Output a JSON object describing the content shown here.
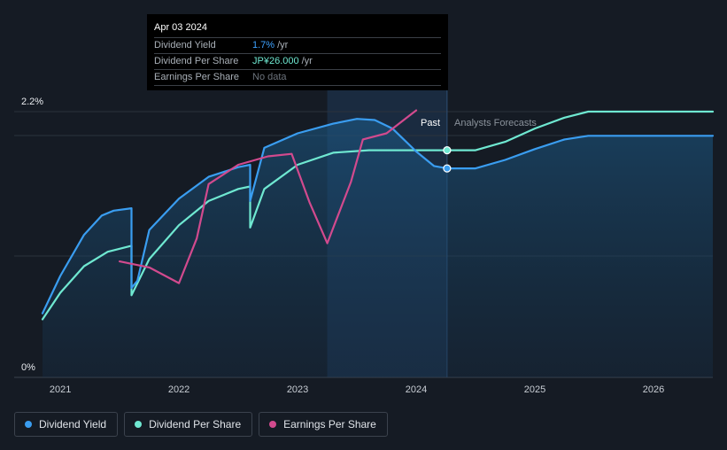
{
  "tooltip": {
    "date": "Apr 03 2024",
    "rows": [
      {
        "label": "Dividend Yield",
        "value": "1.7%",
        "unit": "/yr"
      },
      {
        "label": "Dividend Per Share",
        "value": "JP¥26.000",
        "unit": "/yr"
      },
      {
        "label": "Earnings Per Share",
        "value": "No data"
      }
    ]
  },
  "chart_data": {
    "type": "line",
    "x_ticks": [
      "2021",
      "2022",
      "2023",
      "2024",
      "2025",
      "2026"
    ],
    "y_labels": {
      "top": "2.2%",
      "bottom": "0%"
    },
    "ylim": [
      0,
      2.2
    ],
    "xlim": [
      2020.85,
      2026.5
    ],
    "past_label": "Past",
    "forecast_label": "Analysts Forecasts",
    "divider_x": 2024.26,
    "highlight_start": 2023.25,
    "series": [
      {
        "name": "Dividend Yield",
        "color": "#3a9df0",
        "points": [
          [
            2020.85,
            0.53
          ],
          [
            2021.0,
            0.84
          ],
          [
            2021.2,
            1.18
          ],
          [
            2021.35,
            1.34
          ],
          [
            2021.45,
            1.38
          ],
          [
            2021.6,
            1.4
          ],
          [
            2021.6,
            0.74
          ],
          [
            2021.65,
            0.8
          ],
          [
            2021.75,
            1.22
          ],
          [
            2022.0,
            1.48
          ],
          [
            2022.25,
            1.66
          ],
          [
            2022.5,
            1.74
          ],
          [
            2022.6,
            1.76
          ],
          [
            2022.6,
            1.46
          ],
          [
            2022.72,
            1.9
          ],
          [
            2023.0,
            2.02
          ],
          [
            2023.3,
            2.1
          ],
          [
            2023.5,
            2.14
          ],
          [
            2023.65,
            2.13
          ],
          [
            2023.8,
            2.06
          ],
          [
            2024.0,
            1.87
          ],
          [
            2024.15,
            1.75
          ],
          [
            2024.26,
            1.73
          ],
          [
            2024.5,
            1.73
          ],
          [
            2024.75,
            1.8
          ],
          [
            2025.0,
            1.89
          ],
          [
            2025.25,
            1.97
          ],
          [
            2025.45,
            2.0
          ],
          [
            2026.0,
            2.0
          ],
          [
            2026.5,
            2.0
          ]
        ]
      },
      {
        "name": "Dividend Per Share",
        "color": "#6fe8d1",
        "points": [
          [
            2020.85,
            0.48
          ],
          [
            2021.0,
            0.7
          ],
          [
            2021.2,
            0.92
          ],
          [
            2021.4,
            1.04
          ],
          [
            2021.6,
            1.09
          ],
          [
            2021.6,
            0.68
          ],
          [
            2021.75,
            0.98
          ],
          [
            2022.0,
            1.26
          ],
          [
            2022.25,
            1.46
          ],
          [
            2022.5,
            1.56
          ],
          [
            2022.6,
            1.58
          ],
          [
            2022.6,
            1.24
          ],
          [
            2022.72,
            1.56
          ],
          [
            2023.0,
            1.76
          ],
          [
            2023.3,
            1.86
          ],
          [
            2023.6,
            1.88
          ],
          [
            2024.0,
            1.88
          ],
          [
            2024.26,
            1.88
          ],
          [
            2024.5,
            1.88
          ],
          [
            2024.75,
            1.95
          ],
          [
            2025.0,
            2.06
          ],
          [
            2025.25,
            2.15
          ],
          [
            2025.45,
            2.2
          ],
          [
            2026.0,
            2.2
          ],
          [
            2026.5,
            2.2
          ]
        ]
      },
      {
        "name": "Earnings Per Share",
        "color": "#d24a8e",
        "points": [
          [
            2021.5,
            0.96
          ],
          [
            2021.75,
            0.91
          ],
          [
            2022.0,
            0.78
          ],
          [
            2022.15,
            1.15
          ],
          [
            2022.25,
            1.6
          ],
          [
            2022.5,
            1.76
          ],
          [
            2022.75,
            1.83
          ],
          [
            2022.95,
            1.85
          ],
          [
            2023.1,
            1.45
          ],
          [
            2023.25,
            1.11
          ],
          [
            2023.45,
            1.62
          ],
          [
            2023.55,
            1.97
          ],
          [
            2023.75,
            2.02
          ],
          [
            2024.0,
            2.21
          ]
        ]
      }
    ],
    "markers": [
      {
        "series": "Dividend Per Share",
        "x": 2024.26,
        "y": 1.88
      },
      {
        "series": "Dividend Yield",
        "x": 2024.26,
        "y": 1.73
      }
    ]
  },
  "legend": [
    {
      "label": "Dividend Yield",
      "color": "#3a9df0"
    },
    {
      "label": "Dividend Per Share",
      "color": "#6fe8d1"
    },
    {
      "label": "Earnings Per Share",
      "color": "#d24a8e"
    }
  ]
}
